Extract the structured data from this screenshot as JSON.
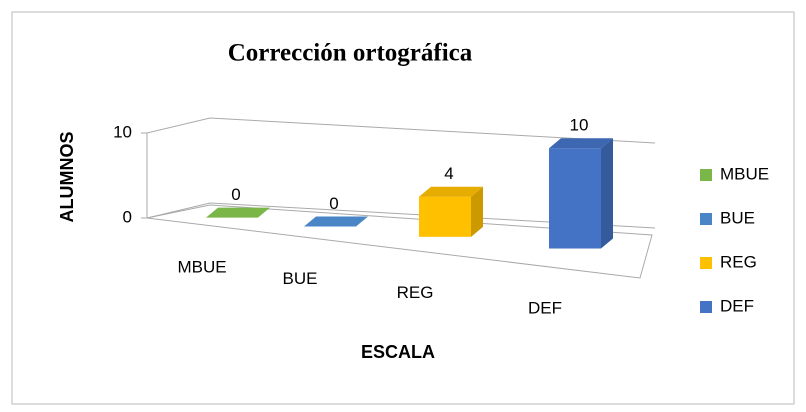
{
  "chart_data": {
    "type": "bar3d",
    "title": "Corrección ortográfica",
    "categories": [
      "MBUE",
      "BUE",
      "REG",
      "DEF"
    ],
    "values": [
      0,
      0,
      4,
      10
    ],
    "colors": [
      "#7ab648",
      "#4a86c5",
      "#ffc000",
      "#4472c4"
    ],
    "ylim": [
      0,
      10
    ],
    "yticks": [
      0,
      10
    ],
    "grid": true,
    "y_axis_label": "ALUMNOS",
    "x_axis_label": "ESCALA",
    "legend": "right"
  }
}
